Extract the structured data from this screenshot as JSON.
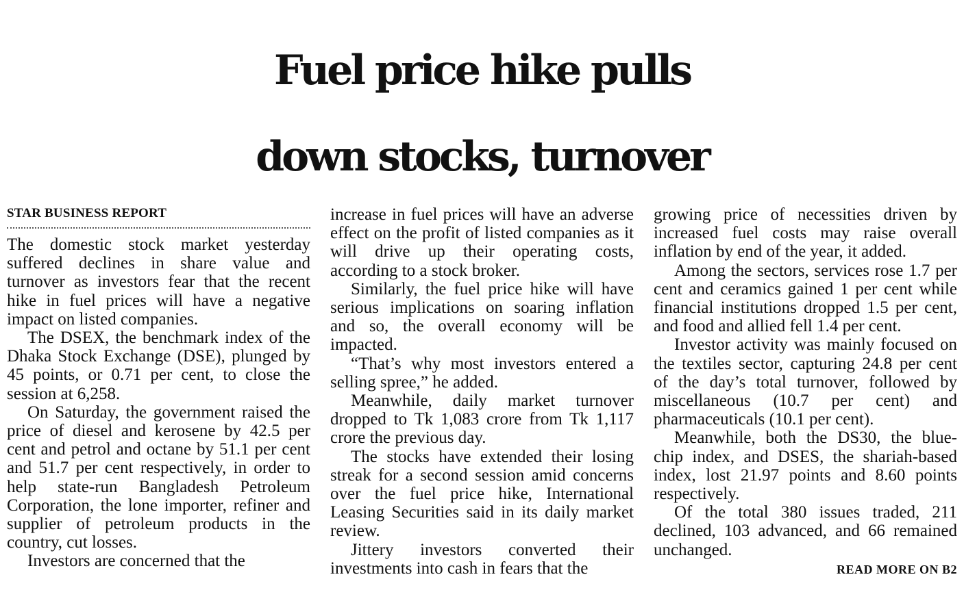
{
  "headline": {
    "line1": "Fuel price hike pulls",
    "line2": "down stocks, turnover"
  },
  "byline": "STAR BUSINESS REPORT",
  "columns": [
    {
      "paragraphs": [
        "The domestic stock market yesterday suffered declines in share value and turnover as investors fear that the recent hike in fuel prices will have a negative impact on listed companies.",
        "The DSEX, the benchmark index of the Dhaka Stock Exchange (DSE), plunged by 45 points, or 0.71 per cent, to close the session at 6,258.",
        "On Saturday, the government raised the price of diesel and kerosene by 42.5 per cent and petrol and octane by 51.1 per cent and 51.7 per cent respectively, in order to help state-run Bangladesh Petroleum Corporation, the lone importer, refiner and supplier of petroleum products in the country, cut losses.",
        "Investors are concerned that the"
      ]
    },
    {
      "paragraphs": [
        "increase in fuel prices will have an adverse effect on the profit of listed companies as it will drive up their operating costs, according to a stock broker.",
        "Similarly, the fuel price hike will have serious implications on soaring inflation and so, the overall economy will be impacted.",
        "“That’s why most investors entered a selling spree,” he added.",
        "Meanwhile, daily market turnover dropped to Tk 1,083 crore from Tk 1,117 crore the previous day.",
        "The stocks have extended their losing streak for a second session amid concerns over the fuel price hike, International Leasing Securities said in its daily market review.",
        "Jittery investors converted their investments into cash in fears that the"
      ]
    },
    {
      "paragraphs": [
        "growing price of necessities driven by increased fuel costs may raise overall inflation by end of the year, it added.",
        "Among the sectors, services rose 1.7 per cent and ceramics gained 1 per cent while financial institutions dropped 1.5 per cent, and food and allied fell 1.4 per cent.",
        "Investor activity was mainly focused on the textiles sector, capturing 24.8 per cent of the day’s total turnover, followed by miscellaneous (10.7 per cent) and pharmaceuticals (10.1 per cent).",
        "Meanwhile, both the DS30, the blue-chip index, and DSES, the shariah-based index, lost 21.97 points and 8.60 points respectively.",
        "Of the total 380 issues traded, 211 declined, 103 advanced, and 66 remained unchanged."
      ]
    }
  ],
  "read_more": "READ MORE ON B2"
}
